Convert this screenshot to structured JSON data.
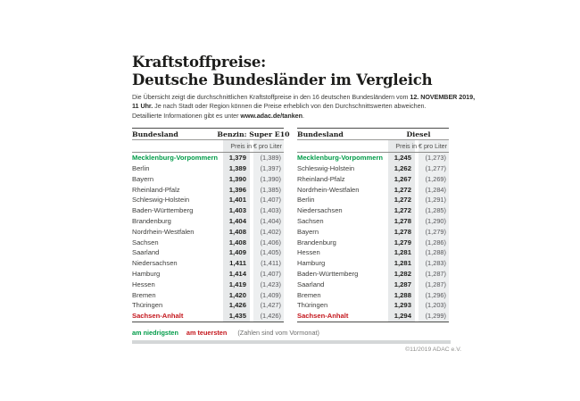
{
  "header": {
    "title_line1": "Kraftstoffpreise:",
    "title_line2": "Deutsche Bundesländer im Vergleich",
    "intro": {
      "seg1": "Die Übersicht zeigt die durchschnittlichen Kraftstoffpreise in den 16 deutschen Bundesländern vom ",
      "seg2_bold": "12. NOVEMBER 2019,",
      "seg3_bold": "11 Uhr.",
      "seg4": " Je nach Stadt oder Region können die Preise erheblich von den Durchschnittswerten abweichen.",
      "seg5": "Detaillierte Informationen gibt es unter ",
      "seg6_bold": "www.adac.de/tanken",
      "seg7": "."
    }
  },
  "tables": [
    {
      "col_state": "Bundesland",
      "col_fuel": "Benzin: Super E10",
      "subheader": "Preis in € pro Liter",
      "rows": [
        {
          "state": "Mecklenburg-Vorpommern",
          "price": "1,379",
          "prev": "(1,389)",
          "hl": "lowest"
        },
        {
          "state": "Berlin",
          "price": "1,389",
          "prev": "(1,397)",
          "hl": ""
        },
        {
          "state": "Bayern",
          "price": "1,390",
          "prev": "(1,390)",
          "hl": ""
        },
        {
          "state": "Rheinland-Pfalz",
          "price": "1,396",
          "prev": "(1,385)",
          "hl": ""
        },
        {
          "state": "Schleswig-Holstein",
          "price": "1,401",
          "prev": "(1,407)",
          "hl": ""
        },
        {
          "state": "Baden-Württemberg",
          "price": "1,403",
          "prev": "(1,403)",
          "hl": ""
        },
        {
          "state": "Brandenburg",
          "price": "1,404",
          "prev": "(1,404)",
          "hl": ""
        },
        {
          "state": "Nordrhein-Westfalen",
          "price": "1,408",
          "prev": "(1,402)",
          "hl": ""
        },
        {
          "state": "Sachsen",
          "price": "1,408",
          "prev": "(1,406)",
          "hl": ""
        },
        {
          "state": "Saarland",
          "price": "1,409",
          "prev": "(1,405)",
          "hl": ""
        },
        {
          "state": "Niedersachsen",
          "price": "1,411",
          "prev": "(1,411)",
          "hl": ""
        },
        {
          "state": "Hamburg",
          "price": "1,414",
          "prev": "(1,407)",
          "hl": ""
        },
        {
          "state": "Hessen",
          "price": "1,419",
          "prev": "(1,423)",
          "hl": ""
        },
        {
          "state": "Bremen",
          "price": "1,420",
          "prev": "(1,409)",
          "hl": ""
        },
        {
          "state": "Thüringen",
          "price": "1,426",
          "prev": "(1,427)",
          "hl": ""
        },
        {
          "state": "Sachsen-Anhalt",
          "price": "1,435",
          "prev": "(1,426)",
          "hl": "highest"
        }
      ]
    },
    {
      "col_state": "Bundesland",
      "col_fuel": "Diesel",
      "subheader": "Preis in € pro Liter",
      "rows": [
        {
          "state": "Mecklenburg-Vorpommern",
          "price": "1,245",
          "prev": "(1,273)",
          "hl": "lowest"
        },
        {
          "state": "Schleswig-Holstein",
          "price": "1,262",
          "prev": "(1,277)",
          "hl": ""
        },
        {
          "state": "Rheinland-Pfalz",
          "price": "1,267",
          "prev": "(1,269)",
          "hl": ""
        },
        {
          "state": "Nordrhein-Westfalen",
          "price": "1,272",
          "prev": "(1,284)",
          "hl": ""
        },
        {
          "state": "Berlin",
          "price": "1,272",
          "prev": "(1,291)",
          "hl": ""
        },
        {
          "state": "Niedersachsen",
          "price": "1,272",
          "prev": "(1,285)",
          "hl": ""
        },
        {
          "state": "Sachsen",
          "price": "1,278",
          "prev": "(1,290)",
          "hl": ""
        },
        {
          "state": "Bayern",
          "price": "1,278",
          "prev": "(1,279)",
          "hl": ""
        },
        {
          "state": "Brandenburg",
          "price": "1,279",
          "prev": "(1,286)",
          "hl": ""
        },
        {
          "state": "Hessen",
          "price": "1,281",
          "prev": "(1,288)",
          "hl": ""
        },
        {
          "state": "Hamburg",
          "price": "1,281",
          "prev": "(1,283)",
          "hl": ""
        },
        {
          "state": "Baden-Württemberg",
          "price": "1,282",
          "prev": "(1,287)",
          "hl": ""
        },
        {
          "state": "Saarland",
          "price": "1,287",
          "prev": "(1,287)",
          "hl": ""
        },
        {
          "state": "Bremen",
          "price": "1,288",
          "prev": "(1,296)",
          "hl": ""
        },
        {
          "state": "Thüringen",
          "price": "1,293",
          "prev": "(1,203)",
          "hl": ""
        },
        {
          "state": "Sachsen-Anhalt",
          "price": "1,294",
          "prev": "(1,299)",
          "hl": "highest"
        }
      ]
    }
  ],
  "legend": {
    "lowest": "am niedrigsten",
    "highest": "am teuersten",
    "note": "(Zahlen sind vom Vormonat)"
  },
  "footer": {
    "copyright": "©11/2019 ADAC e.V."
  },
  "colors": {
    "lowest_green": "#009b48",
    "highest_red": "#c4161c"
  },
  "chart_data": [
    {
      "type": "table",
      "title": "Benzin: Super E10",
      "subtitle": "Preis in € pro Liter (Zahlen in Klammern sind vom Vormonat)",
      "columns": [
        "Bundesland",
        "Preis",
        "Vormonat"
      ],
      "rows": [
        [
          "Mecklenburg-Vorpommern",
          1.379,
          1.389
        ],
        [
          "Berlin",
          1.389,
          1.397
        ],
        [
          "Bayern",
          1.39,
          1.39
        ],
        [
          "Rheinland-Pfalz",
          1.396,
          1.385
        ],
        [
          "Schleswig-Holstein",
          1.401,
          1.407
        ],
        [
          "Baden-Württemberg",
          1.403,
          1.403
        ],
        [
          "Brandenburg",
          1.404,
          1.404
        ],
        [
          "Nordrhein-Westfalen",
          1.408,
          1.402
        ],
        [
          "Sachsen",
          1.408,
          1.406
        ],
        [
          "Saarland",
          1.409,
          1.405
        ],
        [
          "Niedersachsen",
          1.411,
          1.411
        ],
        [
          "Hamburg",
          1.414,
          1.407
        ],
        [
          "Hessen",
          1.419,
          1.423
        ],
        [
          "Bremen",
          1.42,
          1.409
        ],
        [
          "Thüringen",
          1.426,
          1.427
        ],
        [
          "Sachsen-Anhalt",
          1.435,
          1.426
        ]
      ]
    },
    {
      "type": "table",
      "title": "Diesel",
      "subtitle": "Preis in € pro Liter (Zahlen in Klammern sind vom Vormonat)",
      "columns": [
        "Bundesland",
        "Preis",
        "Vormonat"
      ],
      "rows": [
        [
          "Mecklenburg-Vorpommern",
          1.245,
          1.273
        ],
        [
          "Schleswig-Holstein",
          1.262,
          1.277
        ],
        [
          "Rheinland-Pfalz",
          1.267,
          1.269
        ],
        [
          "Nordrhein-Westfalen",
          1.272,
          1.284
        ],
        [
          "Berlin",
          1.272,
          1.291
        ],
        [
          "Niedersachsen",
          1.272,
          1.285
        ],
        [
          "Sachsen",
          1.278,
          1.29
        ],
        [
          "Bayern",
          1.278,
          1.279
        ],
        [
          "Brandenburg",
          1.279,
          1.286
        ],
        [
          "Hessen",
          1.281,
          1.288
        ],
        [
          "Hamburg",
          1.281,
          1.283
        ],
        [
          "Baden-Württemberg",
          1.282,
          1.287
        ],
        [
          "Saarland",
          1.287,
          1.287
        ],
        [
          "Bremen",
          1.288,
          1.296
        ],
        [
          "Thüringen",
          1.293,
          1.203
        ],
        [
          "Sachsen-Anhalt",
          1.294,
          1.299
        ]
      ]
    }
  ]
}
